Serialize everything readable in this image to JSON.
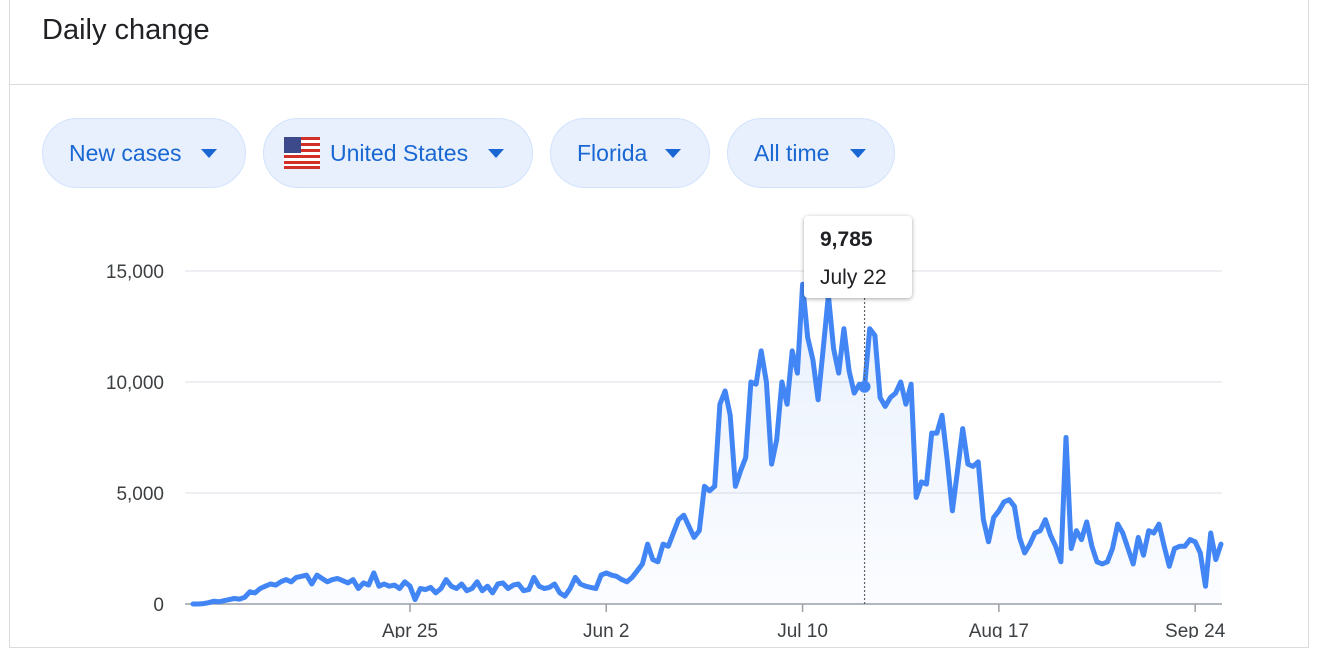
{
  "header": {
    "title": "Daily change"
  },
  "filters": [
    "New cases",
    "United States",
    "Florida",
    "All time"
  ],
  "chart_data": {
    "type": "line",
    "color": "#4285f4",
    "categories": [
      null,
      null,
      null,
      null,
      null,
      null,
      null,
      null,
      null,
      null,
      null,
      null,
      null,
      null,
      null,
      null,
      null,
      null,
      null,
      null,
      null,
      null,
      null,
      null,
      null,
      null,
      null,
      null,
      null,
      null,
      null,
      null,
      null,
      null,
      null,
      null,
      null,
      null,
      null,
      null,
      null,
      null,
      "Apr 25",
      null,
      null,
      null,
      null,
      null,
      null,
      null,
      null,
      null,
      null,
      null,
      null,
      null,
      null,
      null,
      null,
      null,
      null,
      null,
      null,
      null,
      null,
      null,
      null,
      null,
      null,
      null,
      null,
      null,
      null,
      null,
      null,
      null,
      null,
      null,
      null,
      null,
      "Jun 2",
      null,
      null,
      null,
      null,
      null,
      null,
      null,
      null,
      null,
      null,
      null,
      null,
      null,
      null,
      null,
      null,
      null,
      null,
      null,
      null,
      null,
      null,
      null,
      null,
      null,
      null,
      null,
      null,
      null,
      null,
      null,
      null,
      null,
      null,
      null,
      null,
      null,
      "Jul 10",
      null,
      null,
      null,
      null,
      null,
      null,
      null,
      null,
      null,
      null,
      null,
      null,
      null,
      null,
      null,
      null,
      null,
      null,
      null,
      null,
      null,
      null,
      null,
      null,
      null,
      null,
      null,
      null,
      null,
      null,
      null,
      null,
      null,
      null,
      null,
      null,
      null,
      "Aug 17",
      null,
      null,
      null,
      null,
      null,
      null,
      null,
      null,
      null,
      null,
      null,
      null,
      null,
      null,
      null,
      null,
      null,
      null,
      null,
      null,
      null,
      null,
      null,
      null,
      null,
      null,
      null,
      null,
      null,
      null,
      null,
      null,
      null,
      null,
      null,
      null,
      null,
      "Sep 24",
      null,
      null,
      null,
      null,
      null
    ],
    "values": [
      0,
      0,
      20,
      60,
      120,
      100,
      150,
      200,
      250,
      220,
      300,
      550,
      500,
      700,
      800,
      900,
      850,
      1000,
      1100,
      1000,
      1200,
      1250,
      1300,
      900,
      1300,
      1150,
      1000,
      1100,
      1150,
      1050,
      950,
      1100,
      700,
      950,
      850,
      1400,
      800,
      900,
      800,
      850,
      700,
      1000,
      800,
      200,
      700,
      650,
      750,
      500,
      700,
      1100,
      800,
      700,
      900,
      600,
      700,
      1000,
      600,
      800,
      500,
      900,
      950,
      700,
      850,
      900,
      600,
      650,
      1200,
      800,
      700,
      750,
      900,
      500,
      350,
      700,
      1200,
      900,
      800,
      750,
      700,
      1300,
      1400,
      1300,
      1250,
      1100,
      1000,
      1200,
      1500,
      1800,
      2700,
      2000,
      1900,
      2700,
      2600,
      3200,
      3800,
      4000,
      3500,
      3000,
      3300,
      5300,
      5100,
      5300,
      9000,
      9600,
      8500,
      5300,
      6000,
      6600,
      10000,
      9900,
      11400,
      10000,
      6300,
      7400,
      10000,
      9000,
      11400,
      10400,
      14400,
      12000,
      11000,
      9200,
      11500,
      13900,
      11500,
      10400,
      12400,
      10500,
      9500,
      9900,
      9785,
      12400,
      12100,
      9300,
      8900,
      9300,
      9500,
      10000,
      9000,
      9900,
      4800,
      5500,
      5400,
      7700,
      7700,
      8500,
      6500,
      4200,
      6000,
      7900,
      6300,
      6200,
      6400,
      3800,
      2800,
      3900,
      4200,
      4600,
      4700,
      4400,
      3000,
      2300,
      2700,
      3200,
      3300,
      3800,
      3100,
      2600,
      1900,
      7500,
      2500,
      3300,
      2900,
      3700,
      2600,
      1900,
      1800,
      1900,
      2500,
      3600,
      3200,
      2500,
      1800,
      3000,
      2200,
      3300,
      3200,
      3600,
      2600,
      1700,
      2500,
      2600,
      2600,
      2900,
      2800,
      2300,
      800,
      3200,
      2000,
      2700
    ],
    "ylim": [
      0,
      15000
    ],
    "yticks": [
      0,
      {
        "value": 5000,
        "label": "5,000"
      },
      {
        "value": 10000,
        "label": "10,000"
      },
      {
        "value": 15000,
        "label": "15,000"
      }
    ],
    "grid": true,
    "tooltip": {
      "value": 9785,
      "value_label": "9,785",
      "label": "July 22"
    }
  }
}
